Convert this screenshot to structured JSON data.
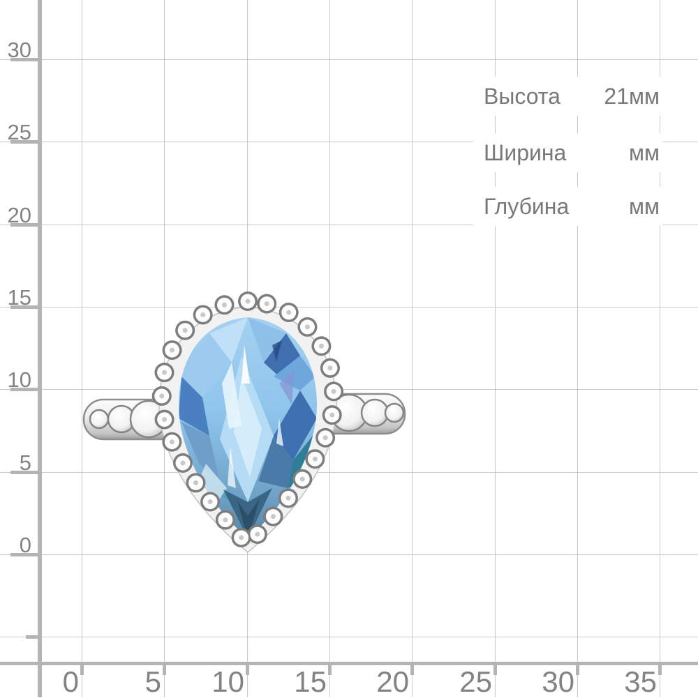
{
  "measurement_panel": {
    "rows": [
      {
        "label": "Высота",
        "value": "21мм"
      },
      {
        "label": "Ширина",
        "value": "мм"
      },
      {
        "label": "Глубина",
        "value": "мм"
      }
    ]
  },
  "grid": {
    "y_axis_labels": [
      "30",
      "25",
      "20",
      "15",
      "10",
      "5",
      "0"
    ],
    "x_axis_labels": [
      "0",
      "5",
      "10",
      "15",
      "20",
      "25",
      "30",
      "35"
    ]
  },
  "image": {
    "subject": "silver-ring-with-pear-cut-blue-gemstone-in-beaded-halo"
  },
  "colors": {
    "background": "#ffffff",
    "gridline": "#c9c9c9",
    "axis": "#b4b4b4",
    "axis_label_text": "#828282",
    "panel_text": "#787878",
    "gem_light": "#cfe8f8",
    "gem_base": "#8ec4ec",
    "gem_deep": "#2f62a8",
    "gem_teal": "#2e7e98",
    "metal_outline": "#7d7d7d"
  }
}
